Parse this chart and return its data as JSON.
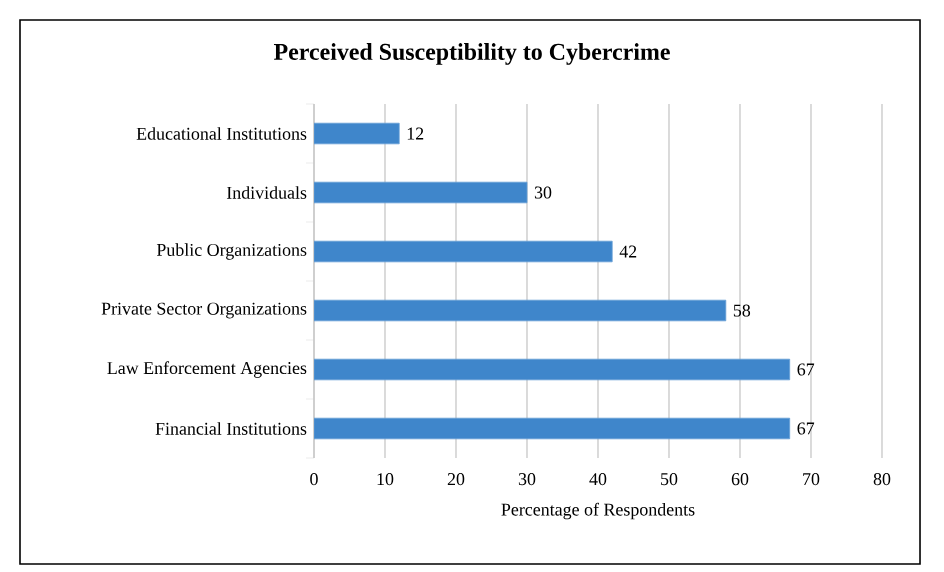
{
  "chart_data": {
    "type": "bar",
    "orientation": "horizontal",
    "title": "Perceived Susceptibility to Cybercrime",
    "xlabel": "Percentage of Respondents",
    "categories": [
      "Educational Institutions",
      "Individuals",
      "Public Organizations",
      "Private Sector Organizations",
      "Law Enforcement Agencies",
      "Financial Institutions"
    ],
    "values": [
      12,
      30,
      42,
      58,
      67,
      67
    ],
    "color": "#3f86cb",
    "xlim": [
      0,
      80
    ],
    "xticks": [
      0,
      10,
      20,
      30,
      40,
      50,
      60,
      70,
      80
    ],
    "grid": "x",
    "data_labels": true
  }
}
